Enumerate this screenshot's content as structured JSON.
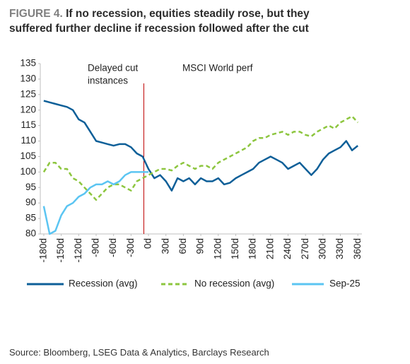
{
  "chart_data": {
    "type": "line",
    "figure_label": "FIGURE 4.",
    "title": "If no recession, equities steadily rose, but they suffered further decline if recession followed after the cut",
    "annotations": [
      "Delayed cut",
      "instances",
      "MSCI World perf"
    ],
    "cut_line_x": -8,
    "cut_line_color": "#c00000",
    "x": [
      -180,
      -170,
      -160,
      -150,
      -140,
      -130,
      -120,
      -110,
      -100,
      -90,
      -80,
      -70,
      -60,
      -50,
      -40,
      -30,
      -20,
      -10,
      0,
      10,
      20,
      30,
      40,
      50,
      60,
      70,
      80,
      90,
      100,
      110,
      120,
      130,
      140,
      150,
      160,
      170,
      180,
      190,
      200,
      210,
      220,
      230,
      240,
      250,
      260,
      270,
      280,
      290,
      300,
      310,
      320,
      330,
      340,
      350,
      360
    ],
    "series": [
      {
        "name": "Recession (avg)",
        "color": "#0d5f98",
        "dashed": false,
        "values": [
          123,
          122.5,
          122,
          121.5,
          121,
          120,
          117,
          116,
          113,
          110,
          109.5,
          109,
          108.5,
          109,
          109,
          108,
          106,
          105,
          101,
          98,
          99,
          97,
          94,
          98,
          97,
          98,
          96,
          98,
          97,
          97,
          98,
          96,
          96.5,
          98,
          99,
          100,
          101,
          103,
          104,
          105,
          104,
          103,
          101,
          102,
          103,
          101,
          99,
          101,
          104,
          106,
          107,
          108,
          110,
          107,
          108.5
        ]
      },
      {
        "name": "No recession (avg)",
        "color": "#8dc63f",
        "dashed": true,
        "values": [
          100,
          103,
          103,
          101,
          101,
          98,
          97,
          95,
          93,
          91,
          93,
          95,
          96,
          96,
          95,
          94,
          97,
          98,
          99,
          100,
          101,
          101,
          100.5,
          102,
          103,
          102,
          101,
          102,
          102,
          101,
          103,
          104,
          105,
          106,
          107,
          108,
          110,
          111,
          111,
          112,
          112.5,
          113,
          112,
          113,
          113,
          112,
          111.5,
          113,
          114,
          115,
          114,
          116,
          117,
          118,
          116
        ]
      },
      {
        "name": "Sep-25",
        "color": "#5bc5f2",
        "dashed": false,
        "values": [
          89,
          80,
          81,
          86,
          89,
          90,
          92,
          93,
          95,
          96,
          96,
          97,
          96,
          97,
          99,
          100,
          100,
          100,
          100,
          null,
          null,
          null,
          null,
          null,
          null,
          null,
          null,
          null,
          null,
          null,
          null,
          null,
          null,
          null,
          null,
          null,
          null,
          null,
          null,
          null,
          null,
          null,
          null,
          null,
          null,
          null,
          null,
          null,
          null,
          null,
          null,
          null,
          null,
          null,
          null
        ]
      }
    ],
    "xlim": [
      -186,
      367
    ],
    "xticks": [
      {
        "value": -180,
        "label": "-180d"
      },
      {
        "value": -150,
        "label": "-150d"
      },
      {
        "value": -120,
        "label": "-120d"
      },
      {
        "value": -90,
        "label": "-90d"
      },
      {
        "value": -60,
        "label": "-60d"
      },
      {
        "value": -30,
        "label": "-30d"
      },
      {
        "value": 0,
        "label": "0d"
      },
      {
        "value": 30,
        "label": "30d"
      },
      {
        "value": 60,
        "label": "60d"
      },
      {
        "value": 90,
        "label": "90d"
      },
      {
        "value": 120,
        "label": "120d"
      },
      {
        "value": 150,
        "label": "150d"
      },
      {
        "value": 180,
        "label": "180d"
      },
      {
        "value": 210,
        "label": "210d"
      },
      {
        "value": 240,
        "label": "240d"
      },
      {
        "value": 270,
        "label": "270d"
      },
      {
        "value": 300,
        "label": "300d"
      },
      {
        "value": 330,
        "label": "330d"
      },
      {
        "value": 360,
        "label": "360d"
      }
    ],
    "ylim": [
      80,
      135
    ],
    "yticks": [
      80,
      85,
      90,
      95,
      100,
      105,
      110,
      115,
      120,
      125,
      130,
      135
    ],
    "grid": false,
    "legend": "bottom",
    "source": "Source: Bloomberg, LSEG Data & Analytics, Barclays Research"
  }
}
